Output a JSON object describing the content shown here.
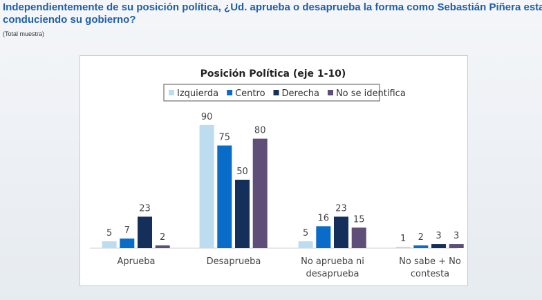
{
  "header": {
    "title": "Independientemente de su posición política, ¿Ud. aprueba o desaprueba la forma como Sebastián Piñera esta conduciendo su gobierno?",
    "note": "(Total muestra)"
  },
  "chart_data": {
    "type": "bar",
    "title": "Posición Política (eje 1-10)",
    "categories": [
      "Aprueba",
      "Desaprueba",
      "No aprueba ni desaprueba",
      "No sabe + No contesta"
    ],
    "series": [
      {
        "name": "Izquierda",
        "color": "#bcdcf0",
        "values": [
          5,
          90,
          5,
          1
        ]
      },
      {
        "name": "Centro",
        "color": "#0a6cc9",
        "values": [
          7,
          75,
          16,
          2
        ]
      },
      {
        "name": "Derecha",
        "color": "#14305a",
        "values": [
          23,
          50,
          23,
          3
        ]
      },
      {
        "name": "No se identifica",
        "color": "#5e4e78",
        "values": [
          2,
          80,
          15,
          3
        ]
      }
    ]
  }
}
